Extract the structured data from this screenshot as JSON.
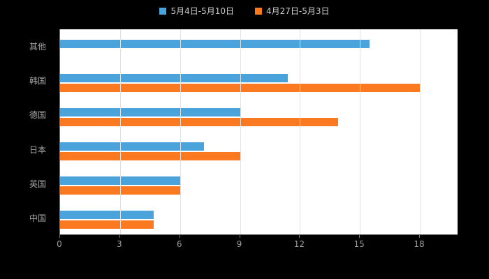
{
  "chart_data": {
    "type": "bar",
    "orientation": "horizontal",
    "title": "",
    "xlabel": "",
    "ylabel": "",
    "categories": [
      "其他",
      "韩国",
      "德国",
      "日本",
      "英国",
      "中国"
    ],
    "series": [
      {
        "name": "5月4日-5月10日",
        "color": "#4BA3DB",
        "values": [
          15.5,
          11.4,
          9,
          7.2,
          6,
          4.7
        ]
      },
      {
        "name": "4月27日-5月3日",
        "color": "#FB7921",
        "values": [
          null,
          18,
          13.9,
          9,
          6,
          4.7
        ]
      }
    ],
    "x_ticks": [
      0,
      3,
      6,
      9,
      12,
      15,
      18
    ],
    "xlim": [
      0,
      18
    ],
    "grid": true,
    "legend_position": "top"
  },
  "colors": {
    "background": "#000000",
    "plot_background": "#ffffff",
    "gridline": "#e2e2e2",
    "axis_line": "#757575",
    "tick_label": "#9e9e9e",
    "category_label": "#a6a6a6",
    "legend_label": "#cccccc"
  }
}
